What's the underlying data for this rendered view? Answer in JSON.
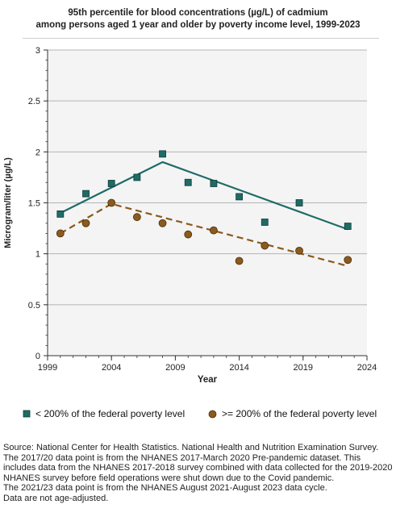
{
  "chart_data": {
    "type": "scatter",
    "title": "95th percentile for blood concentrations (µg/L) of cadmium",
    "subtitle": "among persons aged 1 year and older by poverty income level, 1999-2023",
    "xlabel": "Year",
    "ylabel": "Microgram/liter (µg/L)",
    "xlim": [
      1999,
      2024
    ],
    "ylim": [
      0,
      3
    ],
    "x_ticks": [
      "1999",
      "2004",
      "2009",
      "2014",
      "2019",
      "2024"
    ],
    "y_ticks": [
      "0",
      "0.5",
      "1",
      "1.5",
      "2",
      "2.5",
      "3"
    ],
    "grid": true,
    "legend_position": "bottom",
    "series": [
      {
        "name": "< 200% of the federal poverty level",
        "marker": "square",
        "color": "#1f6b66",
        "x": [
          2000,
          2002,
          2004,
          2006,
          2008,
          2010,
          2012,
          2014,
          2016,
          2018.7,
          2022.5
        ],
        "y": [
          1.39,
          1.59,
          1.69,
          1.75,
          1.98,
          1.7,
          1.69,
          1.56,
          1.31,
          1.5,
          1.27
        ],
        "trend": {
          "style": "solid",
          "x": [
            2000,
            2008,
            2022.5
          ],
          "y": [
            1.4,
            1.9,
            1.24
          ]
        }
      },
      {
        "name": ">= 200% of the federal poverty level",
        "marker": "circle",
        "color": "#8b5a1e",
        "x": [
          2000,
          2002,
          2004,
          2006,
          2008,
          2010,
          2012,
          2014,
          2016,
          2018.7,
          2022.5
        ],
        "y": [
          1.2,
          1.3,
          1.5,
          1.36,
          1.3,
          1.19,
          1.23,
          0.93,
          1.08,
          1.03,
          0.94
        ],
        "trend": {
          "style": "dashed",
          "x": [
            2000,
            2004,
            2022.5
          ],
          "y": [
            1.2,
            1.49,
            0.88
          ]
        }
      }
    ]
  },
  "notes": [
    "Source: National Center for Health Statistics. National Health and Nutrition Examination Survey.",
    "The 2017/20 data point is from the NHANES 2017-March 2020 Pre-pandemic dataset. This includes data from the NHANES 2017-2018 survey combined with data collected for the 2019-2020 NHANES survey before field operations were shut down due to the Covid pandemic.",
    "The 2021/23 data point is from the NHANES August 2021-August 2023 data cycle.",
    "Data are not age-adjusted."
  ]
}
